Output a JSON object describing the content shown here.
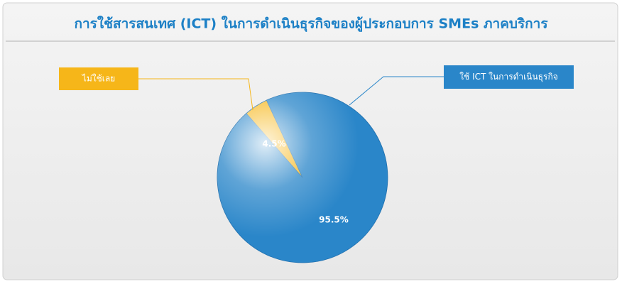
{
  "chart_data": {
    "type": "pie",
    "title": "การใช้สารสนเทศ (ICT) ในการดำเนินธุรกิจของผู้ประกอบการ SMEs ภาคบริการ",
    "categories": [
      "ใช้ ICT ในการดำเนินธุรกิจ",
      "ไม่ใช้เลย"
    ],
    "values": [
      95.5,
      4.5
    ],
    "value_labels": [
      "95.5%",
      "4.5%"
    ],
    "colors": [
      "#2a86c9",
      "#f6b619"
    ]
  }
}
